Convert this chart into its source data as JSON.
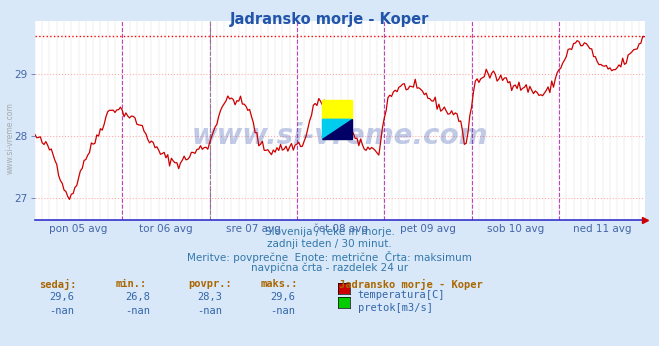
{
  "title": "Jadransko morje - Koper",
  "bg_color": "#d8e8f8",
  "plot_bg_color": "#ffffff",
  "grid_color": "#cccccc",
  "grid_color_h": "#ffaaaa",
  "line_color": "#cc0000",
  "max_line_color": "#ff0000",
  "vline_color_day": "#cc44cc",
  "vline_color_midnight": "#888888",
  "xlabel_color": "#4466aa",
  "title_color": "#2255aa",
  "bottom_text_color": "#3377aa",
  "ylabel_ticks": [
    27,
    28,
    29
  ],
  "ymin": 26.65,
  "ymax": 29.85,
  "max_value": 29.6,
  "info_line1": "Slovenija / reke in morje.",
  "info_line2": "zadnji teden / 30 minut.",
  "info_line3": "Meritve: povprečne  Enote: metrične  Črta: maksimum",
  "info_line4": "navpična črta - razdelek 24 ur",
  "stat_headers": [
    "sedaj:",
    "min.:",
    "povpr.:",
    "maks.:"
  ],
  "stat_values": [
    "29,6",
    "26,8",
    "28,3",
    "29,6"
  ],
  "stat_values2": [
    "-nan",
    "-nan",
    "-nan",
    "-nan"
  ],
  "legend_title": "Jadransko morje - Koper",
  "legend_items": [
    {
      "color": "#cc0000",
      "label": "temperatura[C]"
    },
    {
      "color": "#00cc00",
      "label": "pretok[m3/s]"
    }
  ],
  "x_tick_labels": [
    "pon 05 avg",
    "tor 06 avg",
    "sre 07 avg",
    "čet 08 avg",
    "pet 09 avg",
    "sob 10 avg",
    "ned 11 avg"
  ],
  "n_points": 336,
  "watermark": "www.si-vreme.com",
  "stat_header_color": "#aa6600",
  "stat_val_color": "#3366aa"
}
